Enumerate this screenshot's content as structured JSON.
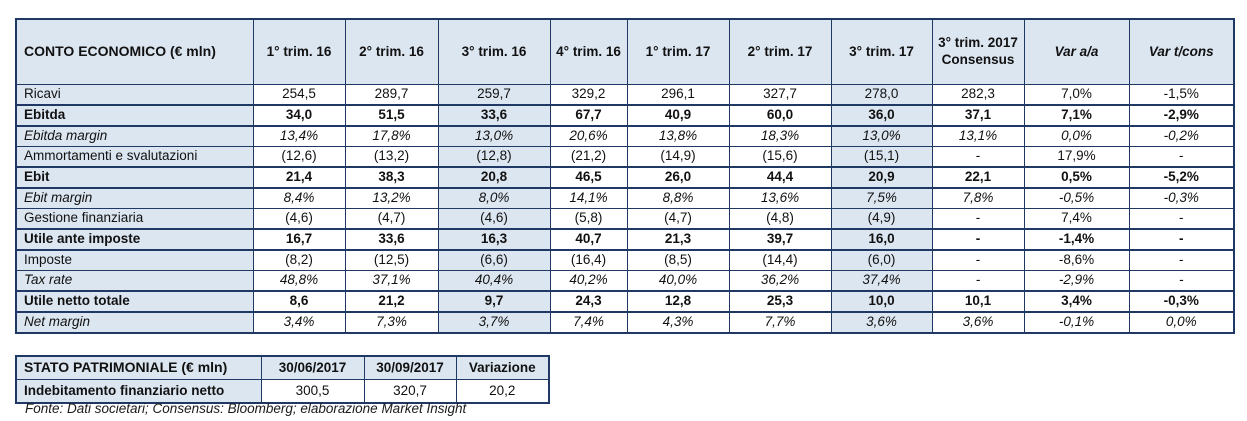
{
  "chart_data": [
    {
      "type": "table",
      "title": "CONTO ECONOMICO (€ mln)",
      "columns": [
        {
          "label": "1° trim. 16"
        },
        {
          "label": "2° trim. 16"
        },
        {
          "label": "3° trim. 16"
        },
        {
          "label": "4° trim. 16"
        },
        {
          "label": "1° trim. 17"
        },
        {
          "label": "2° trim. 17"
        },
        {
          "label": "3° trim. 17"
        },
        {
          "label": "3° trim. 2017",
          "sub": "Consensus"
        },
        {
          "label": "Var a/a",
          "italic": true
        },
        {
          "label": "Var t/cons",
          "italic": true
        }
      ],
      "highlighted_column_indices": [
        2,
        6
      ],
      "rows": [
        {
          "label": "Ricavi",
          "style": "normal",
          "values": [
            "254,5",
            "289,7",
            "259,7",
            "329,2",
            "296,1",
            "327,7",
            "278,0",
            "282,3",
            "7,0%",
            "-1,5%"
          ]
        },
        {
          "label": "Ebitda",
          "style": "bold",
          "values": [
            "34,0",
            "51,5",
            "33,6",
            "67,7",
            "40,9",
            "60,0",
            "36,0",
            "37,1",
            "7,1%",
            "-2,9%"
          ]
        },
        {
          "label": "Ebitda margin",
          "style": "italic",
          "values": [
            "13,4%",
            "17,8%",
            "13,0%",
            "20,6%",
            "13,8%",
            "18,3%",
            "13,0%",
            "13,1%",
            "0,0%",
            "-0,2%"
          ]
        },
        {
          "label": "Ammortamenti e svalutazioni",
          "style": "normal",
          "values": [
            "(12,6)",
            "(13,2)",
            "(12,8)",
            "(21,2)",
            "(14,9)",
            "(15,6)",
            "(15,1)",
            "-",
            "17,9%",
            "-"
          ]
        },
        {
          "label": "Ebit",
          "style": "bold",
          "values": [
            "21,4",
            "38,3",
            "20,8",
            "46,5",
            "26,0",
            "44,4",
            "20,9",
            "22,1",
            "0,5%",
            "-5,2%"
          ]
        },
        {
          "label": "Ebit margin",
          "style": "italic",
          "values": [
            "8,4%",
            "13,2%",
            "8,0%",
            "14,1%",
            "8,8%",
            "13,6%",
            "7,5%",
            "7,8%",
            "-0,5%",
            "-0,3%"
          ]
        },
        {
          "label": "Gestione finanziaria",
          "style": "normal",
          "values": [
            "(4,6)",
            "(4,7)",
            "(4,6)",
            "(5,8)",
            "(4,7)",
            "(4,8)",
            "(4,9)",
            "-",
            "7,4%",
            "-"
          ]
        },
        {
          "label": "Utile ante imposte",
          "style": "bold",
          "values": [
            "16,7",
            "33,6",
            "16,3",
            "40,7",
            "21,3",
            "39,7",
            "16,0",
            "-",
            "-1,4%",
            "-"
          ]
        },
        {
          "label": "Imposte",
          "style": "normal",
          "values": [
            "(8,2)",
            "(12,5)",
            "(6,6)",
            "(16,4)",
            "(8,5)",
            "(14,4)",
            "(6,0)",
            "-",
            "-8,6%",
            "-"
          ]
        },
        {
          "label": "Tax rate",
          "style": "italic",
          "values": [
            "48,8%",
            "37,1%",
            "40,4%",
            "40,2%",
            "40,0%",
            "36,2%",
            "37,4%",
            "-",
            "-2,9%",
            "-"
          ]
        },
        {
          "label": "Utile netto totale",
          "style": "bold",
          "values": [
            "8,6",
            "21,2",
            "9,7",
            "24,3",
            "12,8",
            "25,3",
            "10,0",
            "10,1",
            "3,4%",
            "-0,3%"
          ]
        },
        {
          "label": "Net margin",
          "style": "italic",
          "values": [
            "3,4%",
            "7,3%",
            "3,7%",
            "7,4%",
            "4,3%",
            "7,7%",
            "3,6%",
            "3,6%",
            "-0,1%",
            "0,0%"
          ]
        }
      ]
    },
    {
      "type": "table",
      "title": "STATO PATRIMONIALE (€ mln)",
      "columns": [
        {
          "label": "30/06/2017"
        },
        {
          "label": "30/09/2017"
        },
        {
          "label": "Variazione"
        }
      ],
      "highlighted_column_indices": [],
      "rows": [
        {
          "label": "Indebitamento finanziario netto",
          "style": "bold-label",
          "values": [
            "300,5",
            "320,7",
            "20,2"
          ]
        }
      ]
    }
  ],
  "footnote": "Fonte: Dati societari; Consensus: Bloomberg; elaborazione Market Insight",
  "colors": {
    "cell_fill": "#dce6f1",
    "border": "#1f3864",
    "text": "#111111",
    "background": "#ffffff"
  }
}
